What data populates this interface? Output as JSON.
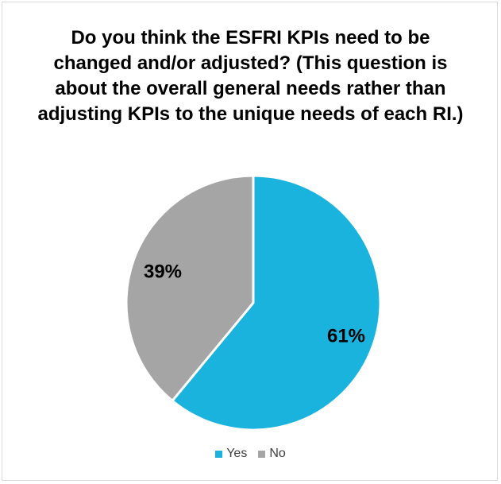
{
  "chart_data": {
    "type": "pie",
    "title": "Do you think the ESFRI KPIs need to be changed and/or adjusted? (This question is about the overall general needs rather than adjusting KPIs to the unique needs of each RI.)",
    "slices": [
      {
        "label": "Yes",
        "value": 61,
        "data_label": "61%",
        "color": "#1ab3de"
      },
      {
        "label": "No",
        "value": 39,
        "data_label": "39%",
        "color": "#a5a5a5"
      }
    ],
    "start": "12 o'clock",
    "direction": "clockwise",
    "legend_position": "bottom"
  }
}
